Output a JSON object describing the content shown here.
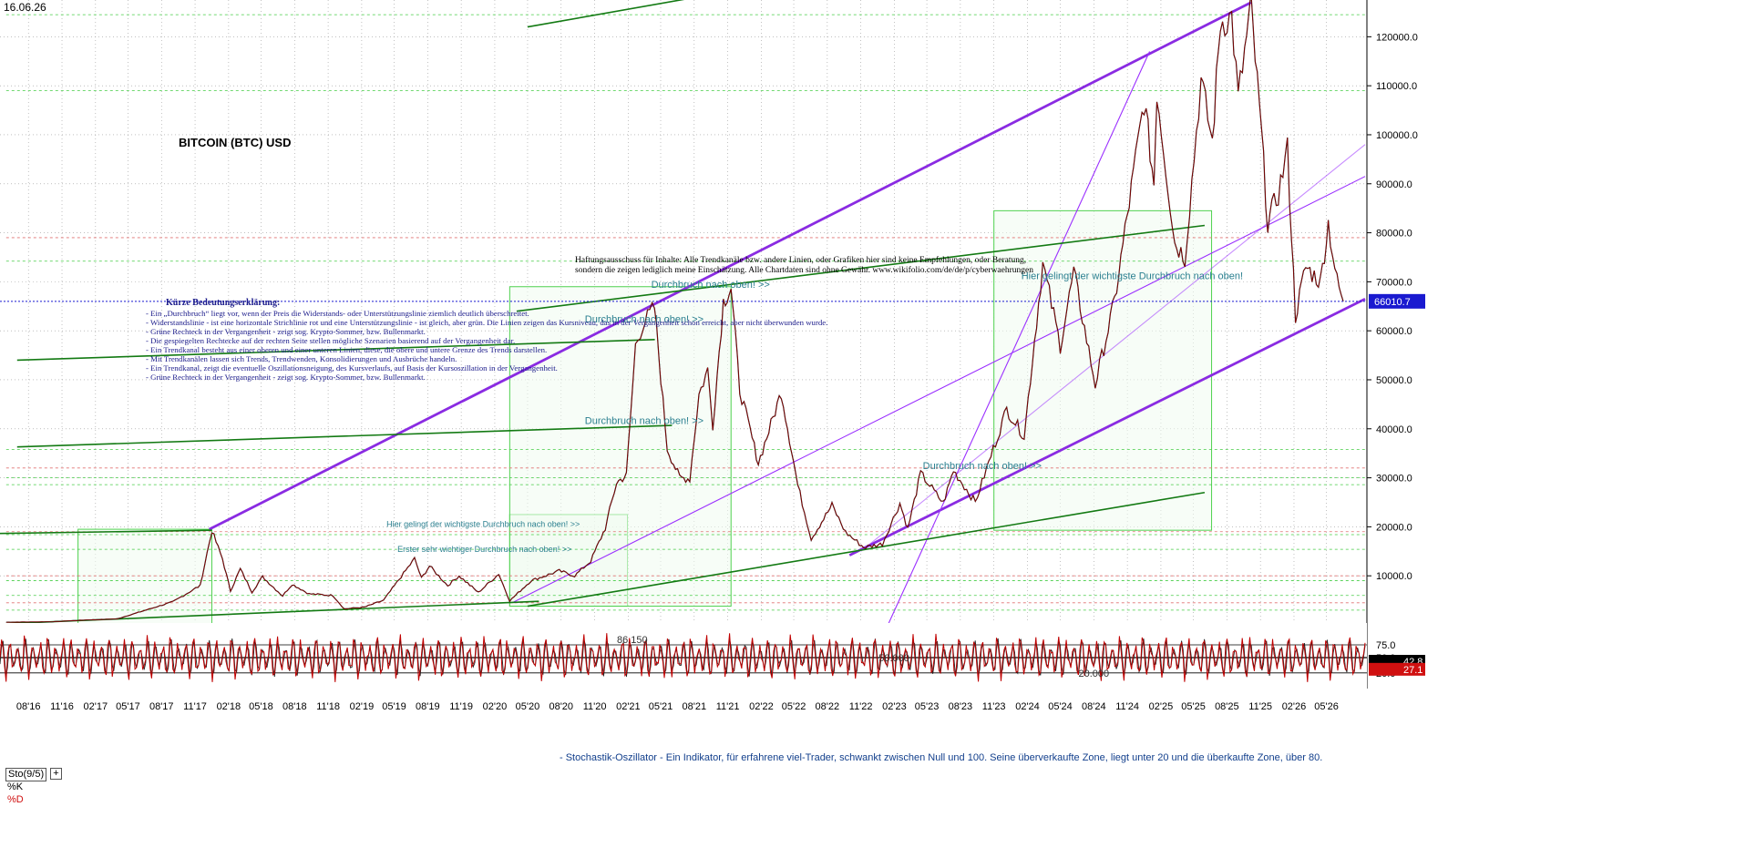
{
  "header": {
    "date": "16.06.26",
    "title": "BITCOIN (BTC) USD"
  },
  "disclaimer": [
    "Haftungsausschuss für Inhalte: Alle Trendkanäle bzw. andere Linien, oder Grafiken hier sind keine Empfehlungen, oder Beratung,",
    "sondern die zeigen lediglich meine Einschätzung. Alle Chartdaten sind ohne Gewähr. www.wikifolio.com/de/de/p/cyberwaehrungen"
  ],
  "legend": {
    "title": "Kürze Bedeutungserklärung:",
    "items": [
      "- Ein „Durchbruch“ liegt vor, wenn der Preis die Widerstands- oder Unterstützungslinie ziemlich deutlich überschreitet.",
      "- Widerstandslinie - ist eine horizontale Strichlinie rot und eine Unterstützungslinie - ist gleich, aber grün. Die Linien zeigen das Kursniveau, das in der Vergangenheit schon erreicht, aber nicht überwunden wurde.",
      "- Grüne Rechteck in der Vergangenheit - zeigt sog. Krypto-Sommer, bzw. Bullenmarkt.",
      "- Die gespiegelten Rechtecke auf der rechten Seite stellen mögliche Szenarien basierend auf der Vergangenheit dar.",
      "- Ein Trendkanal besteht aus einer oberen und einer unteren Linien, diese, die obere und untere Grenze des Trends darstellen.",
      "- Mit Trendkanälen lassen sich Trends, Trendwenden, Konsolidierungen und Ausbrüche handeln.",
      "- Ein Trendkanal, zeigt die eventuelle Oszillationsneigung, des Kursverlaufs, auf Basis der Kursoszillation in der Vergangenheit.",
      "- Grüne Rechteck in der Vergangenheit - zeigt sog. Krypto-Sommer, bzw. Bullenmarkt."
    ]
  },
  "annotations": [
    {
      "text": "Durchbruch nach oben! >>",
      "date": "2021-04-05",
      "price": 68800,
      "color": "#2a7f8f",
      "size": 11
    },
    {
      "text": "Durchbruch nach oben! >>",
      "date": "2020-10-05",
      "price": 61700,
      "color": "#2a7f8f",
      "size": 11
    },
    {
      "text": "Durchbruch nach oben! >>",
      "date": "2020-10-05",
      "price": 41000,
      "color": "#2a7f8f",
      "size": 11
    },
    {
      "text": "Hier gelingt der wichtigste Durchbruch nach oben!",
      "date": "2024-01-15",
      "price": 70500,
      "color": "#2a7f8f",
      "size": 11
    },
    {
      "text": "Durchbruch nach oben! >>",
      "date": "2023-04-20",
      "price": 31800,
      "color": "#2a7f8f",
      "size": 11
    },
    {
      "text": "Hier gelingt der wichtigste Durchbruch nach oben! >>",
      "date": "2019-04-10",
      "price": 20000,
      "color": "#2a7f8f",
      "size": 9
    },
    {
      "text": "Erster sehr wichtiger Durchbruch nach oben! >>",
      "date": "2019-05-10",
      "price": 14900,
      "color": "#2a7f8f",
      "size": 9
    }
  ],
  "stochastic_note": "- Stochastik-Oszillator - Ein Indikator, für erfahrene viel-Trader, schwankt zwischen Null und 100. Seine überverkaufte Zone, liegt unter 20 und die überkaufte Zone, über 80.",
  "stochastic_panel": {
    "label": "Sto(9/5)",
    "plus": "+",
    "k_label": "%K",
    "d_label": "%D",
    "level_labels": [
      {
        "text": "86.150",
        "date": "2021-01-01",
        "value": 86.15
      },
      {
        "text": "50.000",
        "date": "2022-12-20",
        "value": 50
      },
      {
        "text": "20.000",
        "date": "2024-06-20",
        "value": 20
      }
    ]
  },
  "colors": {
    "price": "#9a0000",
    "trend_main": "#8a2be2",
    "trend_thin": "#9b30ff",
    "green_line": "#137a13",
    "box": "#4fd14f",
    "box_fill": "#f1fbf1",
    "current_price_bg": "#1a1ad0",
    "stoch_k": "#c00000",
    "stoch_d": "#222222",
    "grid": "#9a9a9a"
  },
  "chart_data": {
    "type": "line",
    "title": "BITCOIN (BTC) USD",
    "x_range": [
      "2016-05-15",
      "2026-08-15"
    ],
    "y_range": [
      0,
      127500
    ],
    "y_ticks": [
      10000,
      20000,
      30000,
      40000,
      50000,
      60000,
      70000,
      80000,
      90000,
      100000,
      110000,
      120000
    ],
    "y_tick_labels": [
      "10000.0",
      "20000.0",
      "30000.0",
      "40000.0",
      "50000.0",
      "60000.0",
      "70000.0",
      "80000.0",
      "90000.0",
      "100000.0",
      "110000.0",
      "120000.0"
    ],
    "x_tick_labels": [
      "08'16",
      "11'16",
      "02'17",
      "05'17",
      "08'17",
      "11'17",
      "02'18",
      "05'18",
      "08'18",
      "11'18",
      "02'19",
      "05'19",
      "08'19",
      "11'19",
      "02'20",
      "05'20",
      "08'20",
      "11'20",
      "02'21",
      "05'21",
      "08'21",
      "11'21",
      "02'22",
      "05'22",
      "08'22",
      "11'22",
      "02'23",
      "05'23",
      "08'23",
      "11'23",
      "02'24",
      "05'24",
      "08'24",
      "11'24",
      "02'25",
      "05'25",
      "08'25",
      "11'25",
      "02'26",
      "05'26"
    ],
    "x_tick_dates": [
      "2016-08-01",
      "2016-11-01",
      "2017-02-01",
      "2017-05-01",
      "2017-08-01",
      "2017-11-01",
      "2018-02-01",
      "2018-05-01",
      "2018-08-01",
      "2018-11-01",
      "2019-02-01",
      "2019-05-01",
      "2019-08-01",
      "2019-11-01",
      "2020-02-01",
      "2020-05-01",
      "2020-08-01",
      "2020-11-01",
      "2021-02-01",
      "2021-05-01",
      "2021-08-01",
      "2021-11-01",
      "2022-02-01",
      "2022-05-01",
      "2022-08-01",
      "2022-11-01",
      "2023-02-01",
      "2023-05-01",
      "2023-08-01",
      "2023-11-01",
      "2024-02-01",
      "2024-05-01",
      "2024-08-01",
      "2024-11-01",
      "2025-02-01",
      "2025-05-01",
      "2025-08-01",
      "2025-11-01",
      "2026-02-01",
      "2026-05-01"
    ],
    "current_price": {
      "value": 66010.7,
      "label": "66010.7"
    },
    "price_series": {
      "name": "BTC/USD",
      "points": [
        [
          "2016-06-01",
          530
        ],
        [
          "2016-10-01",
          615
        ],
        [
          "2017-01-01",
          960
        ],
        [
          "2017-04-01",
          1200
        ],
        [
          "2017-06-10",
          2800
        ],
        [
          "2017-09-01",
          4700
        ],
        [
          "2017-11-15",
          8000
        ],
        [
          "2017-12-17",
          19200
        ],
        [
          "2018-01-15",
          13500
        ],
        [
          "2018-02-06",
          6900
        ],
        [
          "2018-03-05",
          11400
        ],
        [
          "2018-04-06",
          6700
        ],
        [
          "2018-05-05",
          9800
        ],
        [
          "2018-06-29",
          5900
        ],
        [
          "2018-07-25",
          8300
        ],
        [
          "2018-09-10",
          6300
        ],
        [
          "2018-11-14",
          6000
        ],
        [
          "2018-12-15",
          3250
        ],
        [
          "2019-02-08",
          3600
        ],
        [
          "2019-04-02",
          5000
        ],
        [
          "2019-06-26",
          13500
        ],
        [
          "2019-07-15",
          9500
        ],
        [
          "2019-08-06",
          12000
        ],
        [
          "2019-09-25",
          8000
        ],
        [
          "2019-10-26",
          10000
        ],
        [
          "2019-12-18",
          6600
        ],
        [
          "2020-02-12",
          10400
        ],
        [
          "2020-03-13",
          4900
        ],
        [
          "2020-05-10",
          9000
        ],
        [
          "2020-07-27",
          11000
        ],
        [
          "2020-09-07",
          10000
        ],
        [
          "2020-10-21",
          13000
        ],
        [
          "2020-11-30",
          19700
        ],
        [
          "2020-12-31",
          29000
        ],
        [
          "2021-01-27",
          30500
        ],
        [
          "2021-02-21",
          57000
        ],
        [
          "2021-03-13",
          61300
        ],
        [
          "2021-04-14",
          64800
        ],
        [
          "2021-05-19",
          36000
        ],
        [
          "2021-06-22",
          30000
        ],
        [
          "2021-07-20",
          29800
        ],
        [
          "2021-08-14",
          47000
        ],
        [
          "2021-09-07",
          52000
        ],
        [
          "2021-09-21",
          40700
        ],
        [
          "2021-10-20",
          66000
        ],
        [
          "2021-11-10",
          68800
        ],
        [
          "2021-12-04",
          48000
        ],
        [
          "2022-01-24",
          33000
        ],
        [
          "2022-03-28",
          47500
        ],
        [
          "2022-05-12",
          28500
        ],
        [
          "2022-06-18",
          17600
        ],
        [
          "2022-08-14",
          24400
        ],
        [
          "2022-09-20",
          18900
        ],
        [
          "2022-11-09",
          15800
        ],
        [
          "2022-12-30",
          16500
        ],
        [
          "2023-02-16",
          24800
        ],
        [
          "2023-03-10",
          19600
        ],
        [
          "2023-04-14",
          30900
        ],
        [
          "2023-06-15",
          24800
        ],
        [
          "2023-07-13",
          31500
        ],
        [
          "2023-09-11",
          25000
        ],
        [
          "2023-10-24",
          34500
        ],
        [
          "2023-12-06",
          44000
        ],
        [
          "2024-01-23",
          38500
        ],
        [
          "2024-03-14",
          73700
        ],
        [
          "2024-05-01",
          57000
        ],
        [
          "2024-06-07",
          71900
        ],
        [
          "2024-08-05",
          49000
        ],
        [
          "2024-09-27",
          66000
        ],
        [
          "2024-11-12",
          89000
        ],
        [
          "2024-12-17",
          107000
        ],
        [
          "2025-01-13",
          90000
        ],
        [
          "2025-01-21",
          109000
        ],
        [
          "2025-03-11",
          78000
        ],
        [
          "2025-04-08",
          75000
        ],
        [
          "2025-05-22",
          111000
        ],
        [
          "2025-06-22",
          98500
        ],
        [
          "2025-07-14",
          123000
        ],
        [
          "2025-08-14",
          124000
        ],
        [
          "2025-09-01",
          107500
        ],
        [
          "2025-10-06",
          126000
        ],
        [
          "2025-11-04",
          100000
        ],
        [
          "2025-11-21",
          82000
        ],
        [
          "2025-12-20",
          88000
        ],
        [
          "2026-01-14",
          97000
        ],
        [
          "2026-02-05",
          63000
        ],
        [
          "2026-03-05",
          73000
        ],
        [
          "2026-04-15",
          70000
        ],
        [
          "2026-05-06",
          82000
        ],
        [
          "2026-05-30",
          70000
        ],
        [
          "2026-06-16",
          66010
        ]
      ]
    },
    "trend_lines": [
      {
        "style": "main",
        "from": [
          "2017-12-10",
          19500
        ],
        "to": [
          "2025-10-06",
          127000
        ]
      },
      {
        "style": "main",
        "from": [
          "2022-10-01",
          14200
        ],
        "to": [
          "2026-08-15",
          66500
        ]
      },
      {
        "style": "thin",
        "from": [
          "2020-03-20",
          4500
        ],
        "to": [
          "2026-08-15",
          91500
        ]
      },
      {
        "style": "thin",
        "from": [
          "2023-01-15",
          100
        ],
        "to": [
          "2025-01-01",
          117000
        ]
      },
      {
        "style": "thin",
        "from": [
          "2022-11-01",
          15000
        ],
        "to": [
          "2026-08-15",
          98000
        ],
        "dashed": false,
        "faint": true
      },
      {
        "style": "green",
        "from": [
          "2016-01-15",
          18500
        ],
        "to": [
          "2017-12-17",
          19300
        ]
      },
      {
        "style": "green",
        "from": [
          "2016-07-01",
          54000
        ],
        "to": [
          "2021-04-15",
          58200
        ]
      },
      {
        "style": "green",
        "from": [
          "2016-07-01",
          36300
        ],
        "to": [
          "2021-06-01",
          40700
        ]
      },
      {
        "style": "green",
        "from": [
          "2020-04-01",
          64000
        ],
        "to": [
          "2025-06-01",
          81500
        ]
      },
      {
        "style": "green",
        "from": [
          "2020-05-01",
          3800
        ],
        "to": [
          "2025-06-01",
          27000
        ]
      },
      {
        "style": "green",
        "from": [
          "2016-05-20",
          200
        ],
        "to": [
          "2020-06-01",
          4800
        ]
      },
      {
        "style": "green",
        "from": [
          "2020-05-01",
          122000
        ],
        "to": [
          "2021-08-01",
          128000
        ]
      }
    ],
    "boxes": [
      {
        "from": [
          "2016-12-15",
          200
        ],
        "to": [
          "2017-12-17",
          19500
        ]
      },
      {
        "from": [
          "2020-03-13",
          3800
        ],
        "to": [
          "2021-01-30",
          22500
        ]
      },
      {
        "from": [
          "2020-03-13",
          3800
        ],
        "to": [
          "2021-11-10",
          69000
        ]
      },
      {
        "from": [
          "2023-11-01",
          19300
        ],
        "to": [
          "2025-06-20",
          84500
        ]
      }
    ],
    "dashed_levels": [
      3000,
      4500,
      6000,
      9000,
      10000,
      15400,
      18400,
      19000,
      28600,
      30000,
      32000,
      35800,
      74200,
      79000,
      109000,
      124500
    ],
    "stochastic": {
      "y_range": [
        0,
        100
      ],
      "levels": [
        {
          "value": 75,
          "label": "75.0"
        },
        {
          "value": 50,
          "label": "50.0"
        },
        {
          "value": 20,
          "label": "20.0"
        }
      ],
      "k_value": {
        "value": 42.8,
        "label": "42.8"
      },
      "d_value": {
        "value": 27.1,
        "label": "27.1"
      },
      "cycle_days": 21
    }
  }
}
